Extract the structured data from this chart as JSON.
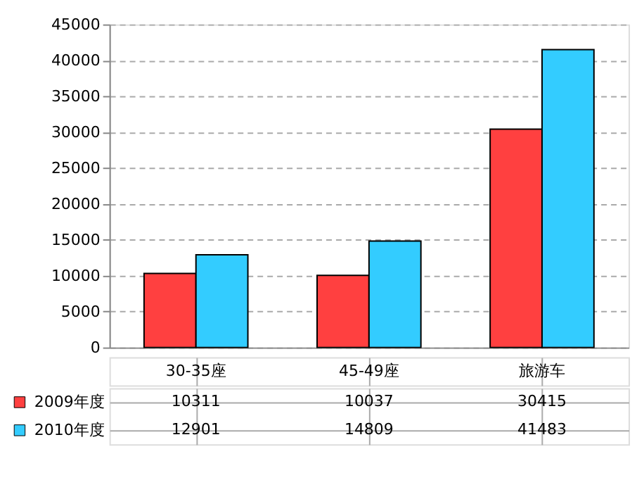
{
  "chart_data": {
    "type": "bar",
    "categories": [
      "30-35座",
      "45-49座",
      "旅游车"
    ],
    "series": [
      {
        "name": "2009年度",
        "color": "#ff4040",
        "values": [
          10311,
          10037,
          30415
        ]
      },
      {
        "name": "2010年度",
        "color": "#33ccff",
        "values": [
          12901,
          14809,
          41483
        ]
      }
    ],
    "ylim": [
      0,
      45000
    ],
    "yticks": [
      0,
      5000,
      10000,
      15000,
      20000,
      25000,
      30000,
      35000,
      40000,
      45000
    ],
    "grid": "y",
    "data_labels": true,
    "legend": "bottom left"
  }
}
